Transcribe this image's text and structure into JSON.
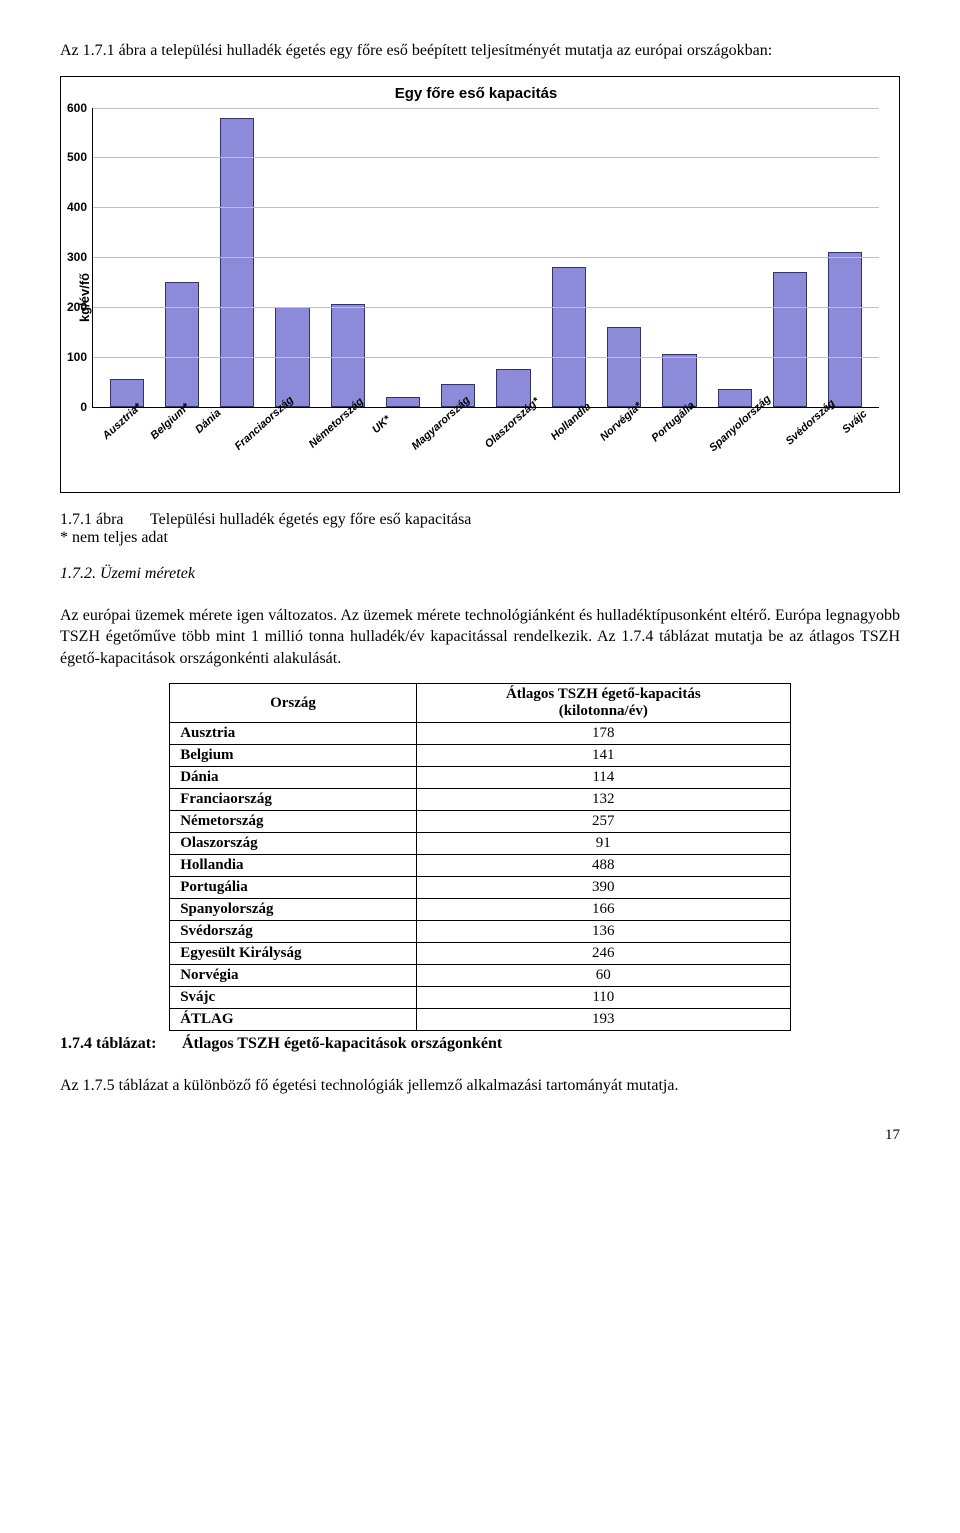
{
  "intro_text": "Az 1.7.1 ábra a települési hulladék égetés egy főre eső beépített teljesítményét mutatja az európai országokban:",
  "chart": {
    "type": "bar",
    "title": "Egy főre eső kapacitás",
    "ylabel": "kg/év/fő",
    "ylim": [
      0,
      600
    ],
    "ytick_step": 100,
    "grid_color": "#c0c0c0",
    "bar_color": "#8b8bd9",
    "bar_border": "#333366",
    "background": "#ffffff",
    "categories": [
      "Ausztria*",
      "Belgium*",
      "Dánia",
      "Franciaország",
      "Németország",
      "UK*",
      "Magyarország",
      "Olaszország*",
      "Hollandia",
      "Norvégia*",
      "Portugália",
      "Spanyolország",
      "Svédország",
      "Svájc"
    ],
    "values": [
      55,
      250,
      580,
      200,
      205,
      20,
      45,
      75,
      280,
      160,
      105,
      35,
      270,
      310
    ]
  },
  "fig_caption": {
    "label": "1.7.1 ábra",
    "text": "Települési hulladék égetés egy főre eső kapacitása",
    "note": "* nem teljes adat"
  },
  "section_heading": "1.7.2. Üzemi méretek",
  "body_para": "Az európai üzemek mérete igen változatos. Az üzemek mérete technológiánként és hulladéktípusonként eltérő. Európa legnagyobb TSZH égetőműve több mint 1 millió tonna hulladék/év kapacitással rendelkezik. Az 1.7.4 táblázat mutatja be az átlagos TSZH égető-kapacitások országonkénti alakulását.",
  "table": {
    "col_country": "Ország",
    "col_value_l1": "Átlagos TSZH égető-kapacitás",
    "col_value_l2": "(kilotonna/év)",
    "rows": [
      {
        "name": "Ausztria",
        "value": "178"
      },
      {
        "name": "Belgium",
        "value": "141"
      },
      {
        "name": "Dánia",
        "value": "114"
      },
      {
        "name": "Franciaország",
        "value": "132"
      },
      {
        "name": "Németország",
        "value": "257"
      },
      {
        "name": "Olaszország",
        "value": "91"
      },
      {
        "name": "Hollandia",
        "value": "488"
      },
      {
        "name": "Portugália",
        "value": "390"
      },
      {
        "name": "Spanyolország",
        "value": "166"
      },
      {
        "name": "Svédország",
        "value": "136"
      },
      {
        "name": "Egyesült Királyság",
        "value": "246"
      },
      {
        "name": "Norvégia",
        "value": "60"
      },
      {
        "name": "Svájc",
        "value": "110"
      },
      {
        "name": "ÁTLAG",
        "value": "193"
      }
    ]
  },
  "table_caption": {
    "label": "1.7.4 táblázat:",
    "text": "Átlagos TSZH égető-kapacitások országonként"
  },
  "closing_para": "Az 1.7.5 táblázat a különböző fő égetési technológiák jellemző alkalmazási tartományát mutatja.",
  "page_number": "17"
}
